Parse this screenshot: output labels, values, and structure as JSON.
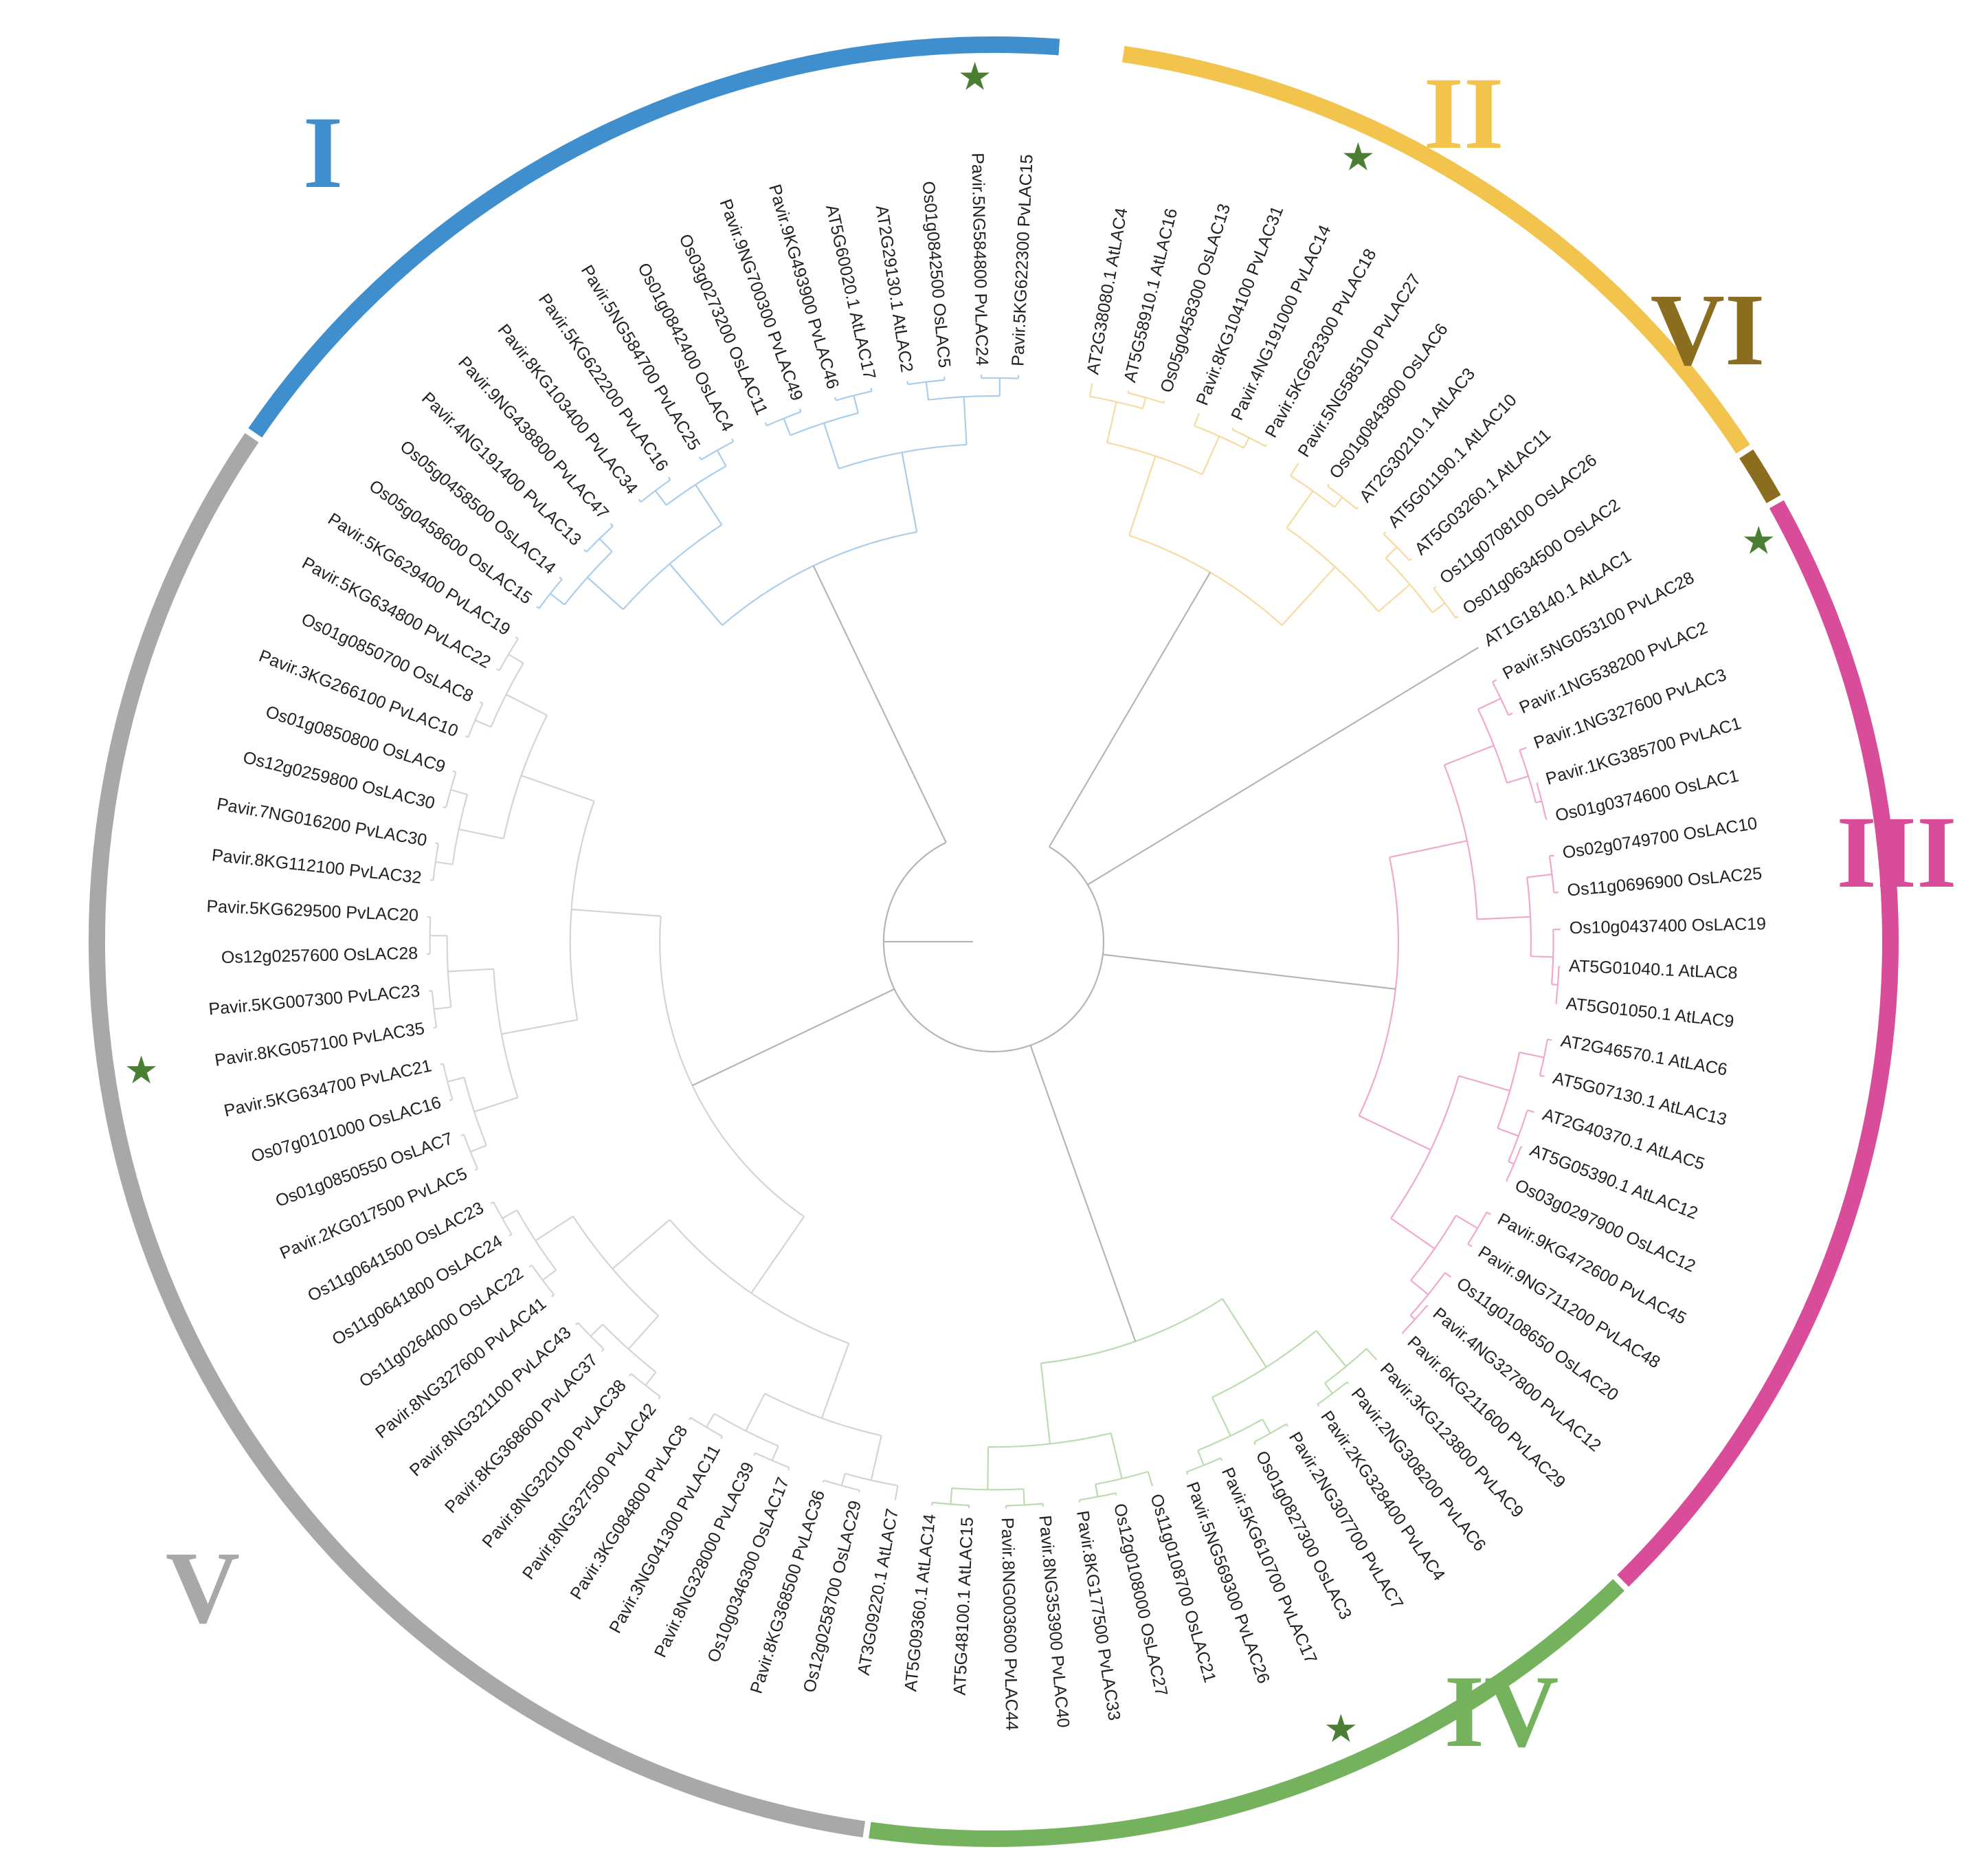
{
  "tree": {
    "leaves": [
      {
        "label": "Pavir.5KG622300 PvLAC15",
        "clade": "I",
        "star": false
      },
      {
        "label": "Pavir.5NG584800 PvLAC24",
        "clade": "I",
        "star": true
      },
      {
        "label": "Os01g0842500 OsLAC5",
        "clade": "I",
        "star": false
      },
      {
        "label": "AT2G29130.1 AtLAC2",
        "clade": "I",
        "star": false
      },
      {
        "label": "AT5G60020.1 AtLAC17",
        "clade": "I",
        "star": false
      },
      {
        "label": "Pavir.9KG493900 PvLAC46",
        "clade": "I",
        "star": false
      },
      {
        "label": "Pavir.9NG700300 PvLAC49",
        "clade": "I",
        "star": false
      },
      {
        "label": "Os03g0273200 OsLAC11",
        "clade": "I",
        "star": false
      },
      {
        "label": "Os01g0842400 OsLAC4",
        "clade": "I",
        "star": false
      },
      {
        "label": "Pavir.5NG584700 PvLAC25",
        "clade": "I",
        "star": false
      },
      {
        "label": "Pavir.5KG622200 PvLAC16",
        "clade": "I",
        "star": false
      },
      {
        "label": "Pavir.8KG103400 PvLAC34",
        "clade": "I",
        "star": false
      },
      {
        "label": "Pavir.9NG438800 PvLAC47",
        "clade": "I",
        "star": false
      },
      {
        "label": "Pavir.4NG191400 PvLAC13",
        "clade": "I",
        "star": false
      },
      {
        "label": "Os05g0458500 OsLAC14",
        "clade": "I",
        "star": false
      },
      {
        "label": "Os05g0458600 OsLAC15",
        "clade": "I",
        "star": false
      },
      {
        "label": "Pavir.5KG629400 PvLAC19",
        "clade": "V",
        "star": false
      },
      {
        "label": "Pavir.5KG634800 PvLAC22",
        "clade": "V",
        "star": false
      },
      {
        "label": "Os01g0850700 OsLAC8",
        "clade": "V",
        "star": false
      },
      {
        "label": "Pavir.3KG266100 PvLAC10",
        "clade": "V",
        "star": false
      },
      {
        "label": "Os01g0850800 OsLAC9",
        "clade": "V",
        "star": false
      },
      {
        "label": "Os12g0259800 OsLAC30",
        "clade": "V",
        "star": false
      },
      {
        "label": "Pavir.7NG016200 PvLAC30",
        "clade": "V",
        "star": false
      },
      {
        "label": "Pavir.8KG112100 PvLAC32",
        "clade": "V",
        "star": false
      },
      {
        "label": "Pavir.5KG629500 PvLAC20",
        "clade": "V",
        "star": false
      },
      {
        "label": "Os12g0257600 OsLAC28",
        "clade": "V",
        "star": false
      },
      {
        "label": "Pavir.5KG007300 PvLAC23",
        "clade": "V",
        "star": false
      },
      {
        "label": "Pavir.8KG057100 PvLAC35",
        "clade": "V",
        "star": true
      },
      {
        "label": "Pavir.5KG634700 PvLAC21",
        "clade": "V",
        "star": false
      },
      {
        "label": "Os07g0101000 OsLAC16",
        "clade": "V",
        "star": false
      },
      {
        "label": "Os01g0850550 OsLAC7",
        "clade": "V",
        "star": false
      },
      {
        "label": "Pavir.2KG017500 PvLAC5",
        "clade": "V",
        "star": false
      },
      {
        "label": "Os11g0641500 OsLAC23",
        "clade": "V",
        "star": false
      },
      {
        "label": "Os11g0641800 OsLAC24",
        "clade": "V",
        "star": false
      },
      {
        "label": "Os11g0264000 OsLAC22",
        "clade": "V",
        "star": false
      },
      {
        "label": "Pavir.8NG327600 PvLAC41",
        "clade": "V",
        "star": false
      },
      {
        "label": "Pavir.8NG321100 PvLAC43",
        "clade": "V",
        "star": false
      },
      {
        "label": "Pavir.8KG368600 PvLAC37",
        "clade": "V",
        "star": false
      },
      {
        "label": "Pavir.8NG320100 PvLAC38",
        "clade": "V",
        "star": false
      },
      {
        "label": "Pavir.8NG327500 PvLAC42",
        "clade": "V",
        "star": false
      },
      {
        "label": "Pavir.3KG084800 PvLAC8",
        "clade": "V",
        "star": false
      },
      {
        "label": "Pavir.3NG041300 PvLAC11",
        "clade": "V",
        "star": false
      },
      {
        "label": "Pavir.8NG328000 PvLAC39",
        "clade": "V",
        "star": false
      },
      {
        "label": "Os10g0346300 OsLAC17",
        "clade": "V",
        "star": false
      },
      {
        "label": "Pavir.8KG368500 PvLAC36",
        "clade": "V",
        "star": false
      },
      {
        "label": "Os12g0258700 OsLAC29",
        "clade": "V",
        "star": false
      },
      {
        "label": "AT3G09220.1 AtLAC7",
        "clade": "V",
        "star": false
      },
      {
        "label": "AT5G09360.1 AtLAC14",
        "clade": "IV",
        "star": false
      },
      {
        "label": "AT5G48100.1 AtLAC15",
        "clade": "IV",
        "star": false
      },
      {
        "label": "Pavir.8NG003600 PvLAC44",
        "clade": "IV",
        "star": false
      },
      {
        "label": "Pavir.8NG353900 PvLAC40",
        "clade": "IV",
        "star": false
      },
      {
        "label": "Pavir.8KG177500 PvLAC33",
        "clade": "IV",
        "star": false
      },
      {
        "label": "Os12g0108000 OsLAC27",
        "clade": "IV",
        "star": false
      },
      {
        "label": "Os11g0108700 OsLAC21",
        "clade": "IV",
        "star": false
      },
      {
        "label": "Pavir.5NG569300 PvLAC26",
        "clade": "IV",
        "star": false
      },
      {
        "label": "Pavir.5KG610700 PvLAC17",
        "clade": "IV",
        "star": true
      },
      {
        "label": "Os01g0827300 OsLAC3",
        "clade": "IV",
        "star": false
      },
      {
        "label": "Pavir.2NG307700 PvLAC7",
        "clade": "IV",
        "star": false
      },
      {
        "label": "Pavir.2KG328400 PvLAC4",
        "clade": "IV",
        "star": false
      },
      {
        "label": "Pavir.2NG308200 PvLAC6",
        "clade": "IV",
        "star": false
      },
      {
        "label": "Pavir.3KG123800 PvLAC9",
        "clade": "IV",
        "star": false
      },
      {
        "label": "Pavir.6KG211600 PvLAC29",
        "clade": "III",
        "star": false
      },
      {
        "label": "Pavir.4NG327800 PvLAC12",
        "clade": "III",
        "star": false
      },
      {
        "label": "Os11g0108650 OsLAC20",
        "clade": "III",
        "star": false
      },
      {
        "label": "Pavir.9NG711200 PvLAC48",
        "clade": "III",
        "star": false
      },
      {
        "label": "Pavir.9KG472600 PvLAC45",
        "clade": "III",
        "star": false
      },
      {
        "label": "Os03g0297900 OsLAC12",
        "clade": "III",
        "star": false
      },
      {
        "label": "AT5G05390.1 AtLAC12",
        "clade": "III",
        "star": false
      },
      {
        "label": "AT2G40370.1 AtLAC5",
        "clade": "III",
        "star": false
      },
      {
        "label": "AT5G07130.1 AtLAC13",
        "clade": "III",
        "star": false
      },
      {
        "label": "AT2G46570.1 AtLAC6",
        "clade": "III",
        "star": false
      },
      {
        "label": "AT5G01050.1 AtLAC9",
        "clade": "III",
        "star": false
      },
      {
        "label": "AT5G01040.1 AtLAC8",
        "clade": "III",
        "star": false
      },
      {
        "label": "Os10g0437400 OsLAC19",
        "clade": "III",
        "star": false
      },
      {
        "label": "Os11g0696900 OsLAC25",
        "clade": "III",
        "star": false
      },
      {
        "label": "Os02g0749700 OsLAC10",
        "clade": "III",
        "star": false
      },
      {
        "label": "Os01g0374600 OsLAC1",
        "clade": "III",
        "star": false
      },
      {
        "label": "Pavir.1KG385700 PvLAC1",
        "clade": "III",
        "star": false
      },
      {
        "label": "Pavir.1NG327600 PvLAC3",
        "clade": "III",
        "star": false
      },
      {
        "label": "Pavir.1NG538200 PvLAC2",
        "clade": "III",
        "star": false
      },
      {
        "label": "Pavir.5NG053100 PvLAC28",
        "clade": "III",
        "star": true
      },
      {
        "label": "AT1G18140.1 AtLAC1",
        "clade": "VI",
        "star": false
      },
      {
        "label": "Os01g0634500 OsLAC2",
        "clade": "II",
        "star": false
      },
      {
        "label": "Os11g0708100 OsLAC26",
        "clade": "II",
        "star": false
      },
      {
        "label": "AT5G03260.1 AtLAC11",
        "clade": "II",
        "star": false
      },
      {
        "label": "AT5G01190.1 AtLAC10",
        "clade": "II",
        "star": false
      },
      {
        "label": "AT2G30210.1 AtLAC3",
        "clade": "II",
        "star": false
      },
      {
        "label": "Os01g0843800 OsLAC6",
        "clade": "II",
        "star": false
      },
      {
        "label": "Pavir.5NG585100 PvLAC27",
        "clade": "II",
        "star": false
      },
      {
        "label": "Pavir.5KG623300 PvLAC18",
        "clade": "II",
        "star": false
      },
      {
        "label": "Pavir.4NG191000 PvLAC14",
        "clade": "II",
        "star": true
      },
      {
        "label": "Pavir.8KG104100 PvLAC31",
        "clade": "II",
        "star": false
      },
      {
        "label": "Os05g0458300 OsLAC13",
        "clade": "II",
        "star": false
      },
      {
        "label": "AT5G58910.1 AtLAC16",
        "clade": "II",
        "star": false
      },
      {
        "label": "AT2G38080.1 AtLAC4",
        "clade": "II",
        "star": false
      }
    ]
  },
  "clades": [
    {
      "name": "I",
      "color": "#3f8fcf",
      "branch_color": "#a9cdea"
    },
    {
      "name": "II",
      "color": "#f2c44d",
      "branch_color": "#f6dba0"
    },
    {
      "name": "VI",
      "color": "#8a6d1f",
      "branch_color": "#cbbd8e"
    },
    {
      "name": "III",
      "color": "#d84c9a",
      "branch_color": "#f0a8cf"
    },
    {
      "name": "IV",
      "color": "#74b25d",
      "branch_color": "#bcdcb0"
    },
    {
      "name": "V",
      "color": "#a8a8a8",
      "branch_color": "#d4d4d4"
    }
  ],
  "colors": {
    "backbone": "#b5b5b5",
    "star": "#4a7f33",
    "label_text": "#222222"
  },
  "icons": {
    "marker": "star-icon"
  }
}
